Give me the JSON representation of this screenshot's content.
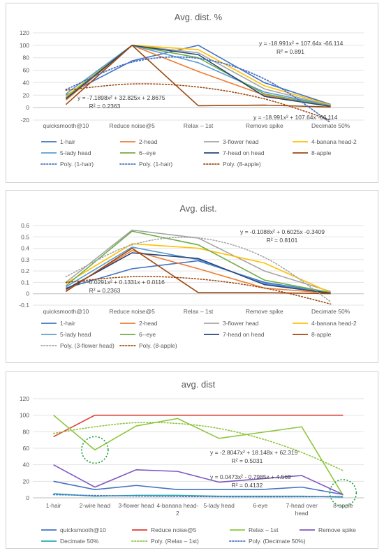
{
  "chart_data": [
    {
      "type": "line",
      "title": "Avg. dist. %",
      "categories": [
        "quicksmooth@10",
        "Reduce noise@5",
        "Relax – 1st",
        "Remove spike",
        "Decimate 50%"
      ],
      "ylim": [
        -20,
        120
      ],
      "yticks": [
        -20,
        0,
        20,
        40,
        60,
        80,
        100,
        120
      ],
      "grid": true,
      "legend": "bottom",
      "series": [
        {
          "name": "1-hair",
          "color": "#4472C4",
          "values": [
            20,
            75,
            100,
            40,
            5
          ]
        },
        {
          "name": "2-head",
          "color": "#ED7D31",
          "values": [
            12,
            100,
            58,
            20,
            2
          ]
        },
        {
          "name": "3-flower head",
          "color": "#A5A5A5",
          "values": [
            15,
            100,
            88,
            30,
            3
          ]
        },
        {
          "name": "4-banana head-2",
          "color": "#FFC000",
          "values": [
            18,
            100,
            93,
            35,
            4
          ]
        },
        {
          "name": "5-lady head",
          "color": "#5B9BD5",
          "values": [
            22,
            100,
            72,
            25,
            3
          ]
        },
        {
          "name": "6--eye",
          "color": "#70AD47",
          "values": [
            16,
            100,
            80,
            22,
            2
          ]
        },
        {
          "name": "7-head on head",
          "color": "#264478",
          "values": [
            14,
            100,
            85,
            18,
            2
          ]
        },
        {
          "name": "8-apple",
          "color": "#9E480E",
          "values": [
            5,
            100,
            3,
            4,
            1
          ]
        },
        {
          "name": "Poly. (1-hair)",
          "color": "#4472C4",
          "dotted": true,
          "values": [
            29,
            73,
            79,
            46,
            -24
          ]
        },
        {
          "name": "Poly. (1-hair)",
          "color": "#4472C4",
          "dotted": true,
          "values": [
            29,
            73,
            79,
            46,
            -24
          ]
        },
        {
          "name": "Poly. (8-apple)",
          "color": "#9E480E",
          "dotted": true,
          "values": [
            28,
            38,
            33,
            14,
            -20
          ]
        }
      ],
      "annotations": [
        "y = -18.991x² + 107.64x -66.114",
        "R² = 0.891",
        "y = -7.1898x² + 32.825x + 2.8675",
        "R² = 0.2363",
        "y = -18.991x² + 107.64x -66.114"
      ]
    },
    {
      "type": "line",
      "title": "Avg. dist.",
      "categories": [
        "quicksmooth@10",
        "Reduce noise@5",
        "Relax – 1st",
        "Remove spike",
        "Decimate 50%"
      ],
      "ylim": [
        -0.1,
        0.6
      ],
      "yticks": [
        "-0.1",
        "0",
        "0.1",
        "0.2",
        "0.3",
        "0.4",
        "0.5",
        "0.6"
      ],
      "grid": true,
      "legend": "bottom",
      "series": [
        {
          "name": "1-hair",
          "color": "#4472C4",
          "values": [
            0.05,
            0.22,
            0.29,
            0.1,
            0.01
          ]
        },
        {
          "name": "2-head",
          "color": "#ED7D31",
          "values": [
            0.03,
            0.38,
            0.22,
            0.05,
            0.005
          ]
        },
        {
          "name": "3-flower head",
          "color": "#A5A5A5",
          "values": [
            0.1,
            0.56,
            0.49,
            0.2,
            0.02
          ]
        },
        {
          "name": "4-banana head-2",
          "color": "#FFC000",
          "values": [
            0.09,
            0.44,
            0.4,
            0.27,
            0.01
          ]
        },
        {
          "name": "5-lady head",
          "color": "#5B9BD5",
          "values": [
            0.06,
            0.41,
            0.3,
            0.09,
            0.01
          ]
        },
        {
          "name": "6--eye",
          "color": "#70AD47",
          "values": [
            0.07,
            0.55,
            0.43,
            0.12,
            0.01
          ]
        },
        {
          "name": "7-head on head",
          "color": "#264478",
          "values": [
            0.04,
            0.36,
            0.31,
            0.08,
            0.005
          ]
        },
        {
          "name": "8-apple",
          "color": "#9E480E",
          "values": [
            0.02,
            0.4,
            0.01,
            0.01,
            0.001
          ]
        },
        {
          "name": "Poly. (3-flower head)",
          "color": "#A5A5A5",
          "dotted": true,
          "values": [
            0.15,
            0.43,
            0.49,
            0.32,
            -0.07
          ]
        },
        {
          "name": "Poly. (8-apple)",
          "color": "#9E480E",
          "dotted": true,
          "values": [
            0.1,
            0.15,
            0.13,
            0.05,
            -0.09
          ]
        }
      ],
      "annotations": [
        "y = -0.1088x² + 0.6025x -0.3409",
        "R² = 0.8101",
        "y = -0.0291x² + 0.1331x + 0.0116",
        "R² = 0.2363"
      ]
    },
    {
      "type": "line",
      "title": "avg. dist",
      "categories": [
        "1-hair",
        "2-wire head",
        "3-flower head",
        "4-banana head-2",
        "5-lady head",
        "6-eye",
        "7-head over head",
        "8-apple"
      ],
      "category_lines": [
        [
          "1-hair"
        ],
        [
          "2-wire head"
        ],
        [
          "3-flower head"
        ],
        [
          "4-banana head-",
          "2"
        ],
        [
          "5-lady head"
        ],
        [
          "6-eye"
        ],
        [
          "7-head over",
          "head"
        ],
        [
          "8-apple"
        ]
      ],
      "ylim": [
        0,
        120
      ],
      "yticks": [
        0,
        20,
        40,
        60,
        80,
        100,
        120
      ],
      "grid": true,
      "legend": "bottom",
      "series": [
        {
          "name": "quicksmooth@10",
          "color": "#4472C4",
          "values": [
            20,
            10,
            15,
            10,
            10,
            10,
            13,
            4
          ]
        },
        {
          "name": "Reduce noise@5",
          "color": "#E03C31",
          "values": [
            74,
            100,
            100,
            100,
            100,
            100,
            100,
            100
          ]
        },
        {
          "name": "Relax – 1st",
          "color": "#8DC63F",
          "values": [
            100,
            58,
            87,
            96,
            72,
            79,
            86,
            3
          ]
        },
        {
          "name": "Remove spike",
          "color": "#7E57C2",
          "values": [
            40,
            13,
            34,
            32,
            19,
            23,
            27,
            4
          ]
        },
        {
          "name": "Decimate 50%",
          "color": "#2AA9B3",
          "values": [
            5,
            2,
            3,
            3,
            2,
            2,
            2,
            1
          ]
        },
        {
          "name": "Poly. (Relax – 1st)",
          "color": "#8DC63F",
          "dotted": true,
          "values": [
            78,
            86,
            91,
            90,
            84,
            72,
            55,
            33
          ]
        },
        {
          "name": "Poly. (Decimate 50%)",
          "color": "#4472C4",
          "dotted": true,
          "values": [
            3.8,
            2.9,
            2.2,
            1.7,
            1.4,
            1.3,
            1.4,
            1.6
          ]
        }
      ],
      "annotations": [
        "y = -2.8047x² + 18.148x + 62.319",
        "R² = 0.5031",
        "y = 0.0473x² - 0.7985x + 4.569",
        "R² = 0.4132"
      ],
      "highlight_circles": [
        "2-wire head",
        "8-apple"
      ]
    }
  ]
}
